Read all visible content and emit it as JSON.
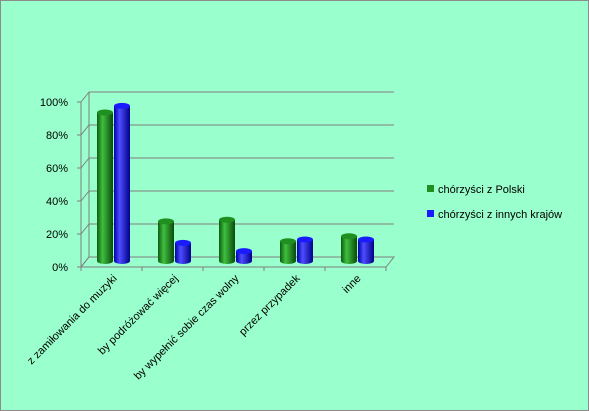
{
  "chart_data": {
    "type": "bar",
    "title": "",
    "xlabel": "",
    "ylabel": "",
    "categories": [
      "z zamiłowania do muzyki",
      "by podróżować więcej",
      "by wypełnić sobie czas wolny",
      "przez przypadek",
      "inne"
    ],
    "series": [
      {
        "name": "chórzyści z Polski",
        "values": [
          90,
          24,
          25,
          12,
          15
        ]
      },
      {
        "name": "chórzyści z innych krajów",
        "values": [
          94,
          11,
          6,
          13,
          13
        ]
      }
    ],
    "y_ticks": [
      "0%",
      "20%",
      "40%",
      "60%",
      "80%",
      "100%"
    ],
    "ylim": [
      0,
      100
    ],
    "grid": true,
    "legend": "right",
    "colors": {
      "series": [
        "#1f8f1f",
        "#1a1aff"
      ],
      "background": "#99ffcc",
      "gridline": "#7f7f7f"
    }
  }
}
